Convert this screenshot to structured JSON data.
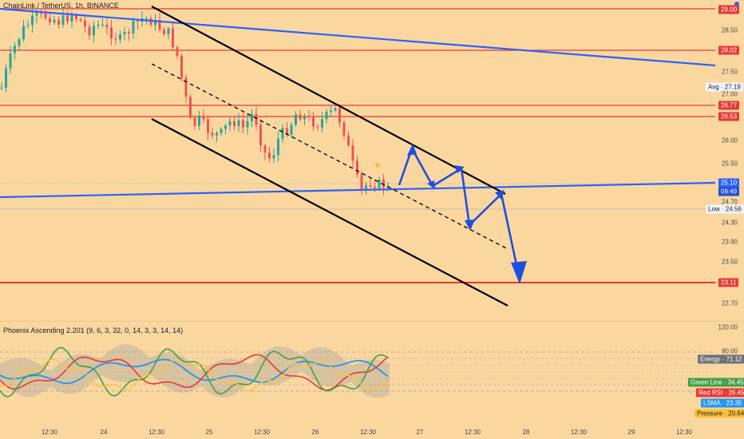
{
  "header": {
    "symbol_title": "ChainLink / TetherUS, 1h, BINANCE",
    "indicator_title": "Phoenix Ascending 2.201 (9, 6, 3, 32, 0, 14, 3, 3, 14, 14)"
  },
  "price_scale": {
    "ticks": [
      "28.50",
      "27.50",
      "27.00",
      "26.00",
      "25.50",
      "24.70",
      "24.30",
      "23.90",
      "23.50",
      "22.70"
    ],
    "level_tags": [
      "29.00",
      "28.02",
      "26.77",
      "26.53",
      "23.11"
    ],
    "current_price": "25.10",
    "countdown": "09:49",
    "avg_label": "Avg · 27.19",
    "low_label": "Low · 24.56"
  },
  "indicator_scale": {
    "ticks": [
      "120.00",
      "80.00"
    ],
    "tags": {
      "energy": "Energy · 71.12",
      "green_line": "Green Line · 34.45",
      "red_rsi": "Red RSI · 26.45",
      "lsma": "LSMA · 23.35",
      "pressure": "Pressure · 20.64"
    }
  },
  "time_axis": {
    "labels": [
      "12:30",
      "24",
      "12:30",
      "25",
      "12:30",
      "26",
      "12:30",
      "27",
      "12:30",
      "28",
      "12:30",
      "29",
      "12:30"
    ]
  },
  "colors": {
    "background": "#fbd7a0",
    "bull": "#26a69a",
    "bear": "#ef5350",
    "level_line": "#e53935",
    "trend_blue": "#2962ff",
    "channel": "#000000"
  }
}
